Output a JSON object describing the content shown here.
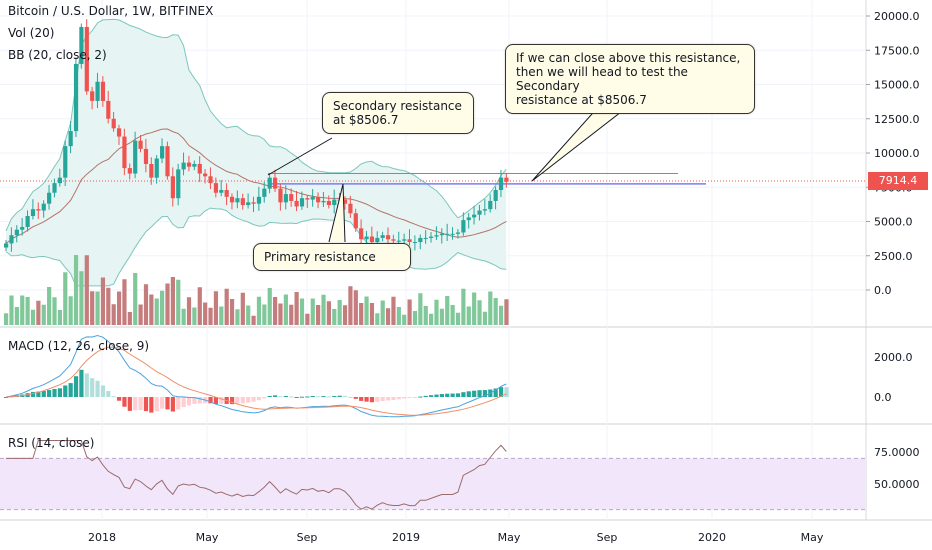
{
  "header": {
    "symbol": "Bitcoin / U.S. Dollar, 1W, BITFINEX",
    "vol": "Vol (20)",
    "bb": "BB (20, close, 2)",
    "macd": "MACD (12, 26, close, 9)",
    "rsi": "RSI (14, close)"
  },
  "annotations": {
    "secondary": "Secondary resistance\nat $8506.7",
    "primary": "Primary resistance",
    "note": "If we can close above this resistance,\nthen we will head to test the Secondary\nresistance at $8506.7"
  },
  "last_price": "7914.4",
  "colors": {
    "up": "#26a69a",
    "down": "#ef5350",
    "vol_up": "#80c89a",
    "vol_down": "#c47c7c",
    "bb_fill": "#e6f5f3",
    "bb_band": "#7cc6be",
    "bb_mid": "#b5736a",
    "resistance": "#7b7bff",
    "macd_line": "#4aa3df",
    "signal_line": "#f0906a",
    "rsi_line": "#9b6b6b",
    "rsi_band": "#f2e6fb"
  },
  "chart_data": {
    "type": "candlestick",
    "price_axis": {
      "ticks": [
        "20000.0",
        "17500.0",
        "15000.0",
        "12500.0",
        "10000.0",
        "7500.0",
        "5000.0",
        "2500.0",
        "0.0"
      ],
      "ylim": [
        -2000,
        20000
      ]
    },
    "macd_axis": {
      "ticks": [
        "2000.0",
        "0.0"
      ]
    },
    "rsi_axis": {
      "ticks": [
        "75.0000",
        "50.0000"
      ]
    },
    "time_axis": {
      "ticks": [
        "2018",
        "May",
        "Sep",
        "2019",
        "May",
        "Sep",
        "2020",
        "May"
      ]
    },
    "resistance_levels": [
      8506.7,
      7750
    ],
    "close_series": [
      3400,
      4000,
      4400,
      4600,
      5400,
      5900,
      5800,
      6300,
      7100,
      7800,
      8200,
      10500,
      11600,
      16500,
      19200,
      14500,
      13800,
      15200,
      13800,
      12500,
      11800,
      11200,
      8900,
      8500,
      10900,
      10300,
      9200,
      8200,
      9600,
      10500,
      8300,
      6700,
      8800,
      9300,
      9000,
      9200,
      8500,
      8300,
      7800,
      7100,
      7300,
      6800,
      6400,
      6700,
      6200,
      6400,
      6300,
      6800,
      7400,
      8200,
      7400,
      6400,
      7000,
      6500,
      6100,
      6700,
      6600,
      6800,
      6400,
      6500,
      6200,
      6600,
      6600,
      6300,
      5600,
      4500,
      3700,
      3900,
      3500,
      3800,
      4000,
      3700,
      3600,
      3600,
      3700,
      3500,
      3500,
      3800,
      3800,
      3900,
      4000,
      4100,
      4100,
      4100,
      4200,
      5100,
      5300,
      5500,
      5800,
      5900,
      6500,
      7300,
      8200,
      7900
    ],
    "macd": {
      "ticks_values": [
        2000,
        0
      ]
    },
    "rsi_last": 74
  }
}
